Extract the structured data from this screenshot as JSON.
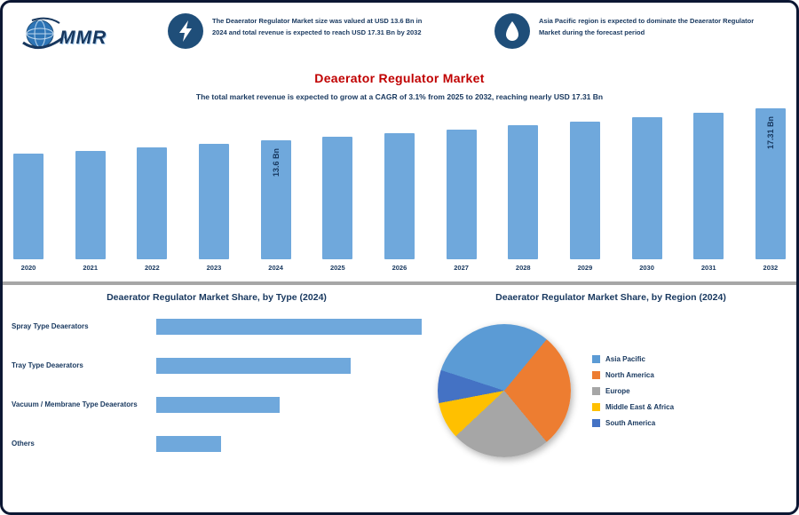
{
  "window": {
    "background": "#ffffff",
    "border_color": "#0c1733"
  },
  "header": {
    "logo": {
      "name": "MMR",
      "globe_color": "#2e75b6",
      "accent_color": "#17375e"
    },
    "highlights": [
      {
        "icon": "lightning-bolt-icon",
        "circle_color": "#1f4e79",
        "text": "The Deaerator Regulator Market size was valued at USD 13.6 Bn in 2024 and total revenue is expected to reach USD 17.31 Bn by 2032"
      },
      {
        "icon": "water-drop-icon",
        "circle_color": "#1f4e79",
        "text": "Asia Pacific region is expected to dominate the Deaerator Regulator Market during the forecast period"
      }
    ]
  },
  "title": {
    "text": "Deaerator Regulator Market",
    "color": "#c00000"
  },
  "subtitle": "The total market revenue is expected to grow at a CAGR of 3.1% from 2025 to 2032, reaching nearly USD 17.31 Bn",
  "chart_data": [
    {
      "type": "bar",
      "title": "",
      "categories": [
        "2020",
        "2021",
        "2022",
        "2023",
        "2024",
        "2025",
        "2026",
        "2027",
        "2028",
        "2029",
        "2030",
        "2031",
        "2032"
      ],
      "values": [
        12.1,
        12.45,
        12.8,
        13.2,
        13.6,
        14.02,
        14.45,
        14.89,
        15.35,
        15.82,
        16.3,
        16.8,
        17.31
      ],
      "unit": "USD Bn",
      "ylim": [
        0,
        17.31
      ],
      "bar_color": "#6fa8dc",
      "grid": false,
      "legend": "none",
      "data_labels": {
        "2024": "13.6 Bn",
        "2032": "17.31 Bn"
      }
    },
    {
      "type": "bar",
      "orientation": "horizontal",
      "title": "Deaerator Regulator Market Share, by Type (2024)",
      "categories": [
        "Spray Type Deaerators",
        "Tray Type Deaerators",
        "Vacuum / Membrane Type Deaerators",
        "Others"
      ],
      "values": [
        41,
        30,
        19,
        10
      ],
      "unit": "%",
      "xlim": [
        0,
        45
      ],
      "bar_color": "#6fa8dc",
      "grid": false,
      "legend": "none"
    },
    {
      "type": "pie",
      "title": "Deaerator Regulator Market Share, by Region (2024)",
      "slices": [
        {
          "label": "Asia Pacific",
          "value": 31,
          "color": "#5b9bd5"
        },
        {
          "label": "North America",
          "value": 28,
          "color": "#ed7d31"
        },
        {
          "label": "Europe",
          "value": 24,
          "color": "#a6a6a6"
        },
        {
          "label": "Middle East & Africa",
          "value": 9,
          "color": "#ffc000"
        },
        {
          "label": "South America",
          "value": 8,
          "color": "#4472c4"
        }
      ],
      "start_angle_deg": 288,
      "legend_position": "right"
    }
  ]
}
